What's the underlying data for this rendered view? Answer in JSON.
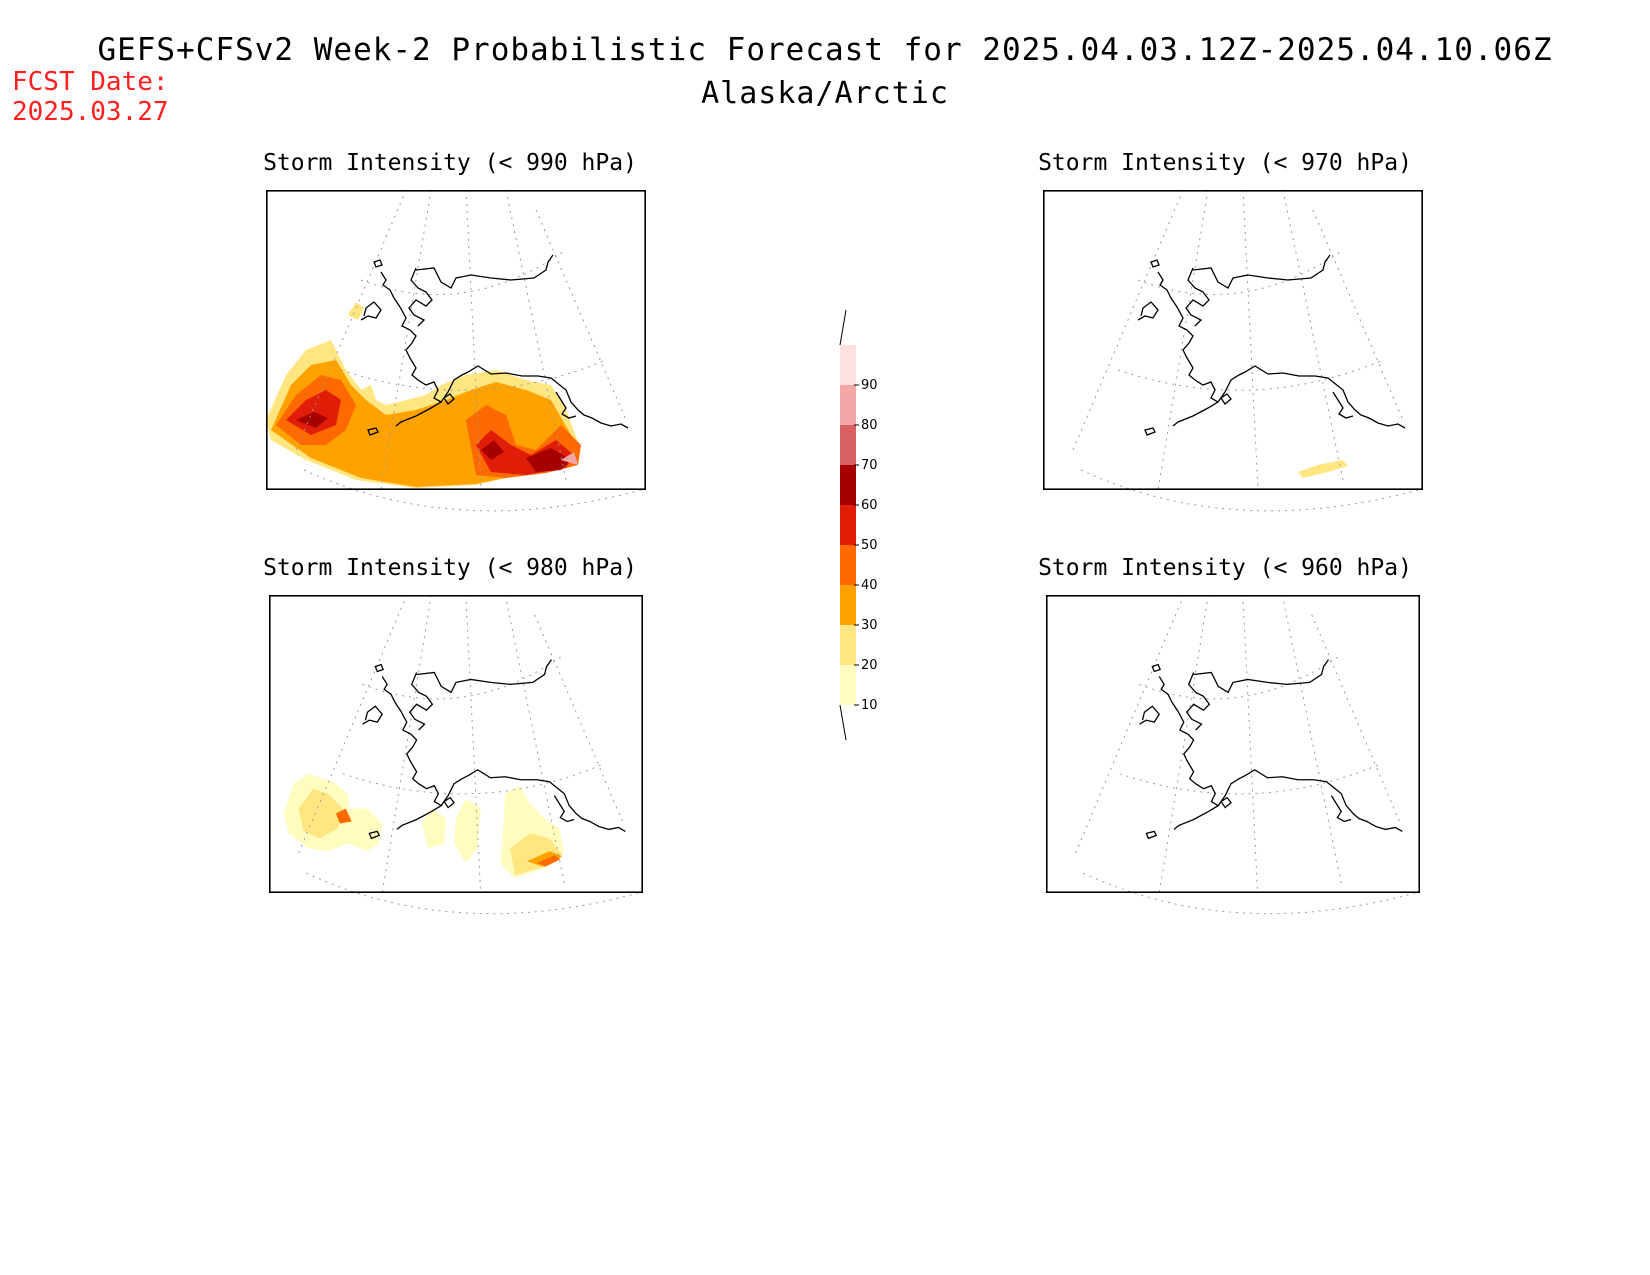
{
  "header": {
    "title": "GEFS+CFSv2 Week-2 Probabilistic Forecast for 2025.04.03.12Z-2025.04.10.06Z",
    "region": "Alaska/Arctic",
    "fcst_label": "FCST Date:",
    "fcst_date": "2025.03.27",
    "fcst_color": "#ff2020"
  },
  "panels": [
    {
      "id": "p990",
      "title": "Storm Intensity (< 990 hPa)"
    },
    {
      "id": "p970",
      "title": "Storm Intensity (< 970 hPa)"
    },
    {
      "id": "p980",
      "title": "Storm Intensity (< 980 hPa)"
    },
    {
      "id": "p960",
      "title": "Storm Intensity (< 960 hPa)"
    }
  ],
  "colorbar": {
    "levels": [
      10,
      20,
      30,
      40,
      50,
      60,
      70,
      80,
      90
    ],
    "colors": [
      "#fffcc0",
      "#ffe680",
      "#ffa200",
      "#ff6a00",
      "#e01e08",
      "#a60000",
      "#d96060",
      "#f2a6a6",
      "#ffe0e0"
    ]
  }
}
